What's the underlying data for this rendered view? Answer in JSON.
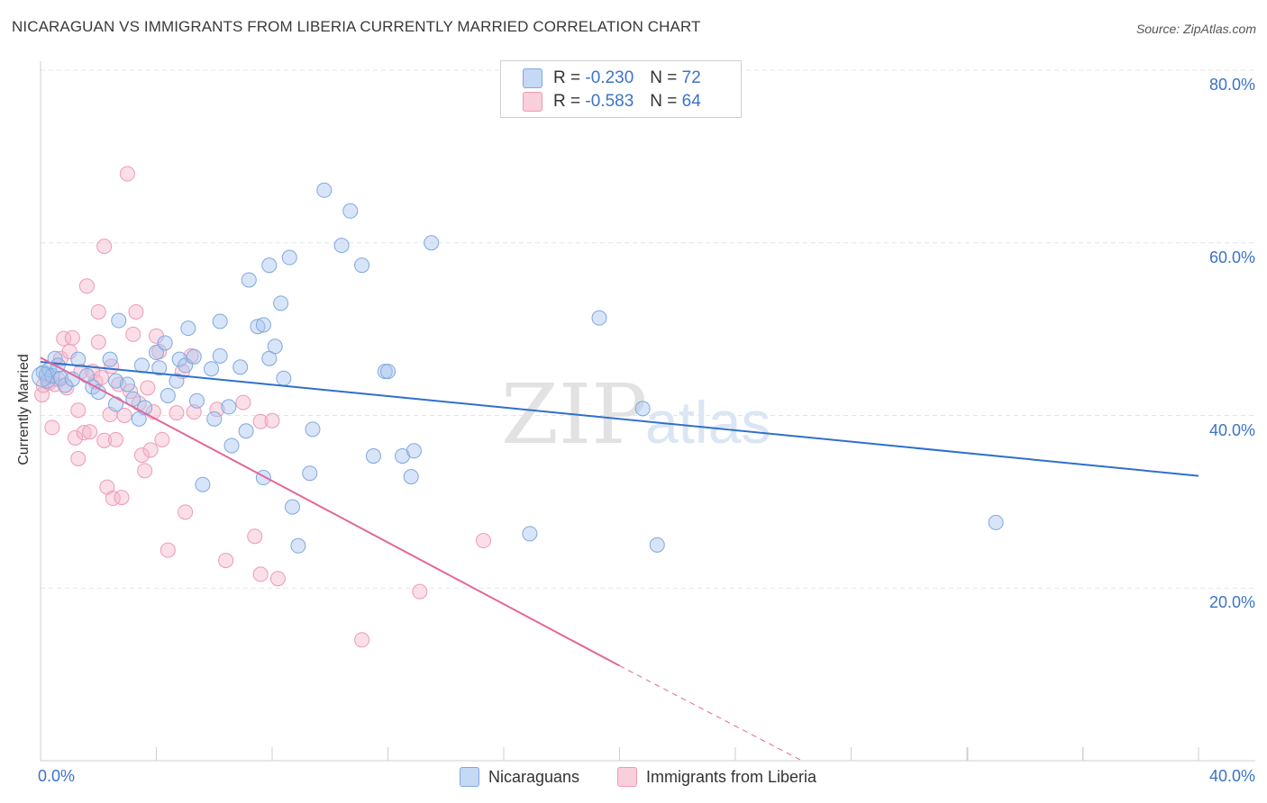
{
  "header": {
    "title": "NICARAGUAN VS IMMIGRANTS FROM LIBERIA CURRENTLY MARRIED CORRELATION CHART",
    "source": "Source: ZipAtlas.com"
  },
  "legend_top": {
    "rows": [
      {
        "r_label": "R =",
        "r_value": "-0.230",
        "n_label": "N =",
        "n_value": "72"
      },
      {
        "r_label": "R =",
        "r_value": "-0.583",
        "n_label": "N =",
        "n_value": "64"
      }
    ]
  },
  "legend_bottom": {
    "series1": "Nicaraguans",
    "series2": "Immigrants from Liberia"
  },
  "watermark": {
    "zip": "ZIP",
    "atlas": "atlas"
  },
  "colors": {
    "blue_fill": "#a9c6ef",
    "blue_stroke": "#7fa8de",
    "blue_line": "#2f70cc",
    "pink_fill": "#f5b8cc",
    "pink_stroke": "#ee9ab5",
    "pink_line": "#e3679a",
    "tick_text": "#3b73c9"
  },
  "chart_data": {
    "type": "scatter",
    "title": "NICARAGUAN VS IMMIGRANTS FROM LIBERIA CURRENTLY MARRIED CORRELATION CHART",
    "xlabel": "",
    "ylabel": "Currently Married",
    "xlim": [
      0,
      40
    ],
    "ylim": [
      0,
      80
    ],
    "x_tick_labels": [
      "0.0%",
      "40.0%"
    ],
    "y_ticks": [
      20,
      40,
      60,
      80
    ],
    "y_tick_labels": [
      "20.0%",
      "40.0%",
      "60.0%",
      "80.0%"
    ],
    "grid": true,
    "series": [
      {
        "name": "Nicaraguans",
        "R": -0.23,
        "N": 72,
        "trend": {
          "x0": 0,
          "y0": 46.2,
          "x1": 40,
          "y1": 33.0
        },
        "points": [
          [
            0.1,
            45.0
          ],
          [
            0.2,
            44.8
          ],
          [
            0.25,
            44.0
          ],
          [
            0.3,
            45.3
          ],
          [
            0.4,
            44.6
          ],
          [
            0.5,
            46.6
          ],
          [
            0.6,
            45.8
          ],
          [
            0.7,
            44.3
          ],
          [
            0.85,
            43.5
          ],
          [
            1.1,
            44.2
          ],
          [
            1.3,
            46.5
          ],
          [
            1.6,
            44.6
          ],
          [
            1.8,
            43.3
          ],
          [
            2.0,
            42.7
          ],
          [
            2.4,
            46.5
          ],
          [
            2.6,
            44.0
          ],
          [
            2.7,
            51.0
          ],
          [
            2.6,
            41.3
          ],
          [
            3.0,
            43.6
          ],
          [
            3.2,
            41.9
          ],
          [
            3.4,
            39.6
          ],
          [
            3.6,
            40.9
          ],
          [
            3.5,
            45.8
          ],
          [
            4.0,
            47.3
          ],
          [
            4.1,
            45.5
          ],
          [
            4.3,
            48.4
          ],
          [
            4.4,
            42.3
          ],
          [
            4.7,
            44.0
          ],
          [
            4.8,
            46.5
          ],
          [
            5.0,
            45.8
          ],
          [
            5.1,
            50.1
          ],
          [
            5.3,
            46.8
          ],
          [
            5.4,
            41.7
          ],
          [
            5.6,
            32.0
          ],
          [
            5.9,
            45.4
          ],
          [
            6.0,
            39.6
          ],
          [
            6.2,
            50.9
          ],
          [
            6.2,
            46.9
          ],
          [
            6.5,
            41.0
          ],
          [
            6.6,
            36.5
          ],
          [
            6.9,
            45.6
          ],
          [
            7.1,
            38.2
          ],
          [
            7.2,
            55.7
          ],
          [
            7.5,
            50.3
          ],
          [
            7.7,
            50.5
          ],
          [
            7.7,
            32.8
          ],
          [
            7.9,
            46.6
          ],
          [
            7.9,
            57.4
          ],
          [
            8.1,
            48.0
          ],
          [
            8.3,
            53.0
          ],
          [
            8.4,
            44.3
          ],
          [
            8.6,
            58.3
          ],
          [
            8.7,
            29.4
          ],
          [
            8.9,
            24.9
          ],
          [
            9.3,
            33.3
          ],
          [
            9.4,
            38.4
          ],
          [
            9.8,
            66.1
          ],
          [
            10.4,
            59.7
          ],
          [
            10.7,
            63.7
          ],
          [
            11.1,
            57.4
          ],
          [
            11.5,
            35.3
          ],
          [
            11.9,
            45.1
          ],
          [
            12.0,
            45.1
          ],
          [
            12.5,
            35.3
          ],
          [
            12.8,
            32.9
          ],
          [
            12.9,
            35.9
          ],
          [
            13.5,
            60.0
          ],
          [
            16.9,
            26.3
          ],
          [
            19.3,
            51.3
          ],
          [
            20.8,
            40.8
          ],
          [
            21.3,
            25.0
          ],
          [
            33.0,
            27.6
          ]
        ]
      },
      {
        "name": "Immigrants from Liberia",
        "R": -0.583,
        "N": 64,
        "trend": {
          "x0": 0,
          "y0": 46.7,
          "x1": 20.0,
          "y1": 11.0,
          "dash_to_x": 26.3,
          "dash_to_y": 0.0
        },
        "points": [
          [
            0.05,
            42.4
          ],
          [
            0.1,
            43.5
          ],
          [
            0.2,
            44.5
          ],
          [
            0.3,
            43.8
          ],
          [
            0.4,
            38.6
          ],
          [
            0.5,
            43.6
          ],
          [
            0.6,
            44.2
          ],
          [
            0.7,
            46.6
          ],
          [
            0.8,
            48.9
          ],
          [
            0.9,
            43.2
          ],
          [
            1.0,
            47.4
          ],
          [
            1.1,
            49.0
          ],
          [
            1.2,
            37.4
          ],
          [
            1.3,
            35.0
          ],
          [
            1.3,
            40.6
          ],
          [
            1.4,
            45.1
          ],
          [
            1.5,
            38.0
          ],
          [
            1.6,
            55.0
          ],
          [
            1.7,
            38.1
          ],
          [
            1.8,
            45.1
          ],
          [
            1.9,
            43.9
          ],
          [
            2.0,
            48.5
          ],
          [
            2.0,
            52.0
          ],
          [
            2.1,
            44.4
          ],
          [
            2.2,
            59.6
          ],
          [
            2.2,
            37.1
          ],
          [
            2.3,
            31.7
          ],
          [
            2.4,
            40.1
          ],
          [
            2.45,
            45.7
          ],
          [
            2.5,
            30.4
          ],
          [
            2.6,
            37.2
          ],
          [
            2.7,
            43.6
          ],
          [
            2.8,
            30.5
          ],
          [
            2.9,
            40.0
          ],
          [
            3.0,
            68.0
          ],
          [
            3.1,
            42.8
          ],
          [
            3.2,
            49.4
          ],
          [
            3.3,
            52.0
          ],
          [
            3.4,
            41.4
          ],
          [
            3.5,
            35.4
          ],
          [
            3.6,
            33.6
          ],
          [
            3.8,
            36.0
          ],
          [
            3.9,
            40.4
          ],
          [
            4.0,
            49.2
          ],
          [
            4.1,
            47.4
          ],
          [
            4.2,
            37.2
          ],
          [
            4.4,
            24.4
          ],
          [
            4.7,
            40.3
          ],
          [
            4.9,
            45.1
          ],
          [
            5.0,
            28.8
          ],
          [
            5.2,
            46.9
          ],
          [
            5.3,
            40.4
          ],
          [
            6.1,
            40.7
          ],
          [
            6.4,
            23.2
          ],
          [
            7.0,
            41.5
          ],
          [
            7.4,
            26.0
          ],
          [
            7.6,
            39.3
          ],
          [
            7.6,
            21.6
          ],
          [
            8.0,
            39.4
          ],
          [
            8.2,
            21.1
          ],
          [
            11.1,
            14.0
          ],
          [
            13.1,
            19.6
          ],
          [
            15.3,
            25.5
          ],
          [
            3.7,
            43.2
          ]
        ]
      }
    ]
  }
}
